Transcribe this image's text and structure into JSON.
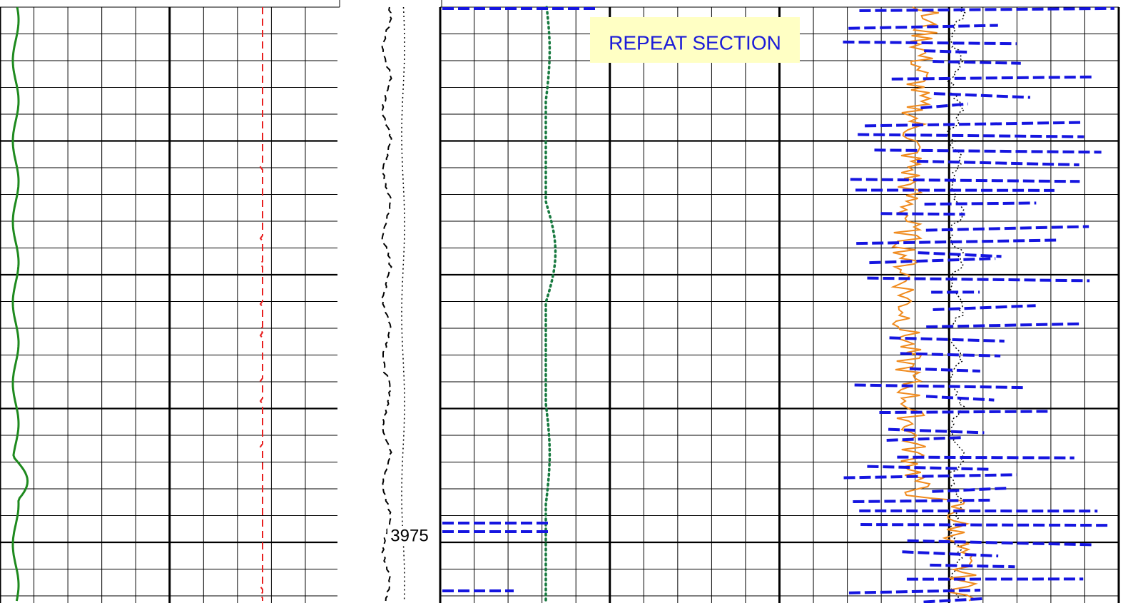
{
  "annotation": {
    "label": "REPEAT SECTION"
  },
  "depth_label": "3975"
}
